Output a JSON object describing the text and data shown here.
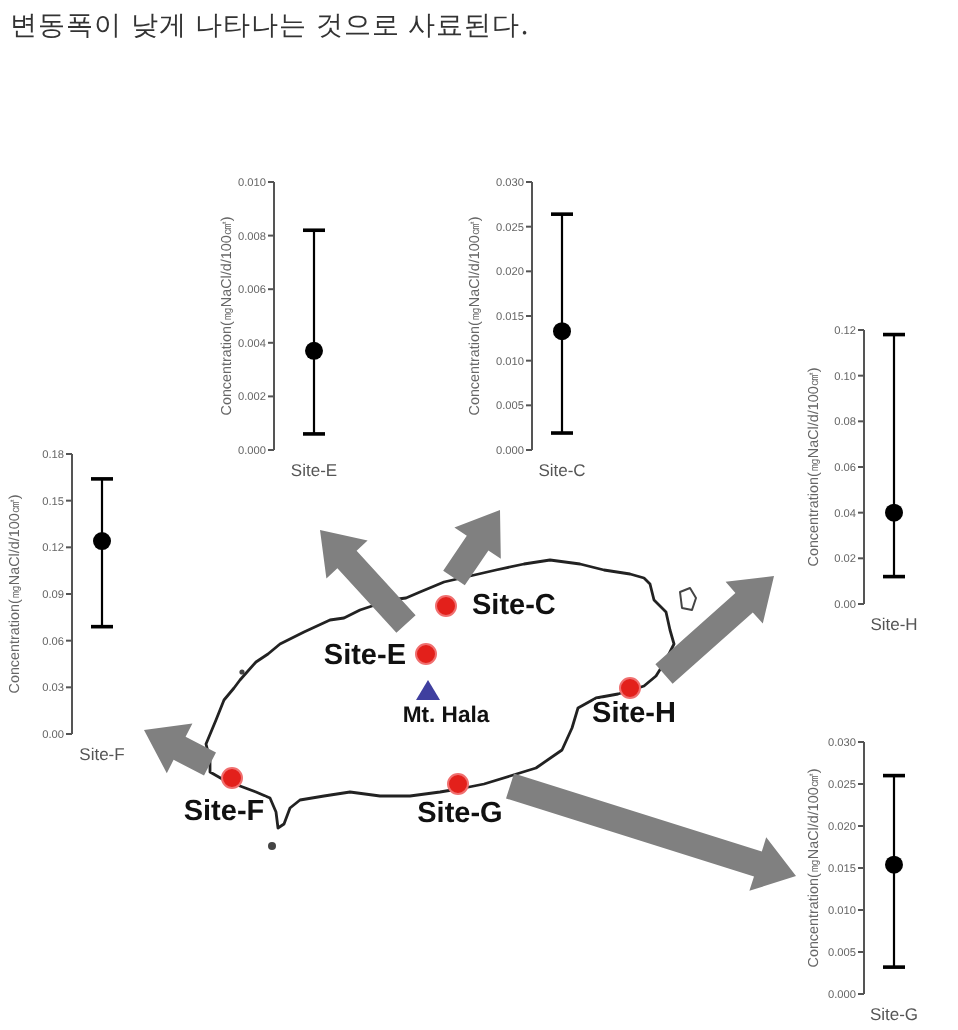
{
  "chart_data": [
    {
      "type": "other",
      "annotations": [
        "변동폭이 낮게 나타나는 것으로 사료된다."
      ]
    },
    {
      "type": "scatter",
      "categories": [
        "Site-E"
      ],
      "series": [
        {
          "color": "#000000",
          "values": [
            0.0037
          ],
          "errors": [
            [
              0.0006,
              0.0082
            ]
          ]
        }
      ],
      "ylim": [
        0,
        0.01
      ],
      "yticks": [
        {
          "value": 0,
          "label": "0.000"
        },
        0.002,
        0.004,
        0.006,
        0.008,
        {
          "value": 0.01,
          "label": "0.010"
        }
      ],
      "ylabel": "Concentration(㎎NaCl/d/100㎠)",
      "marker": "circle"
    },
    {
      "type": "scatter",
      "categories": [
        "Site-C"
      ],
      "series": [
        {
          "color": "#000000",
          "values": [
            0.0133
          ],
          "errors": [
            [
              0.0019,
              0.0264
            ]
          ]
        }
      ],
      "ylim": [
        0,
        0.03
      ],
      "yticks": [
        {
          "value": 0,
          "label": "0.000"
        },
        0.005,
        {
          "value": 0.01,
          "label": "0.010"
        },
        0.015,
        {
          "value": 0.02,
          "label": "0.020"
        },
        0.025,
        {
          "value": 0.03,
          "label": "0.030"
        }
      ],
      "ylabel": "Concentration(㎎NaCl/d/100㎠)",
      "marker": "circle"
    },
    {
      "type": "scatter",
      "categories": [
        "Site-H"
      ],
      "series": [
        {
          "color": "#000000",
          "values": [
            0.04
          ],
          "errors": [
            [
              0.012,
              0.118
            ]
          ]
        }
      ],
      "ylim": [
        0,
        0.12
      ],
      "yticks": [
        {
          "value": 0,
          "label": "0.00"
        },
        0.02,
        0.04,
        0.06,
        0.08,
        {
          "value": 0.1,
          "label": "0.10"
        },
        0.12
      ],
      "ylabel": "Concentration(㎎NaCl/d/100㎠)",
      "marker": "circle"
    },
    {
      "type": "scatter",
      "categories": [
        "Site-F"
      ],
      "series": [
        {
          "color": "#000000",
          "values": [
            0.124
          ],
          "errors": [
            [
              0.069,
              0.164
            ]
          ]
        }
      ],
      "ylim": [
        0,
        0.18
      ],
      "yticks": [
        {
          "value": 0,
          "label": "0.00"
        },
        0.03,
        0.06,
        0.09,
        0.12,
        0.15,
        0.18
      ],
      "ylabel": "Concentration(㎎NaCl/d/100㎠)",
      "marker": "circle"
    },
    {
      "type": "other",
      "annotations": [
        "Site-C",
        "Site-E",
        "Mt. Hala",
        "Site-H",
        "Site-F",
        "Site-G"
      ]
    },
    {
      "type": "scatter",
      "categories": [
        "Site-G"
      ],
      "series": [
        {
          "color": "#000000",
          "values": [
            0.0154
          ],
          "errors": [
            [
              0.0032,
              0.026
            ]
          ]
        }
      ],
      "ylim": [
        0,
        0.03
      ],
      "yticks": [
        {
          "value": 0,
          "label": "0.000"
        },
        0.005,
        {
          "value": 0.01,
          "label": "0.010"
        },
        0.015,
        {
          "value": 0.02,
          "label": "0.020"
        },
        0.025,
        {
          "value": 0.03,
          "label": "0.030"
        }
      ],
      "ylabel": "Concentration(㎎NaCl/d/100㎠)",
      "marker": "circle"
    }
  ]
}
